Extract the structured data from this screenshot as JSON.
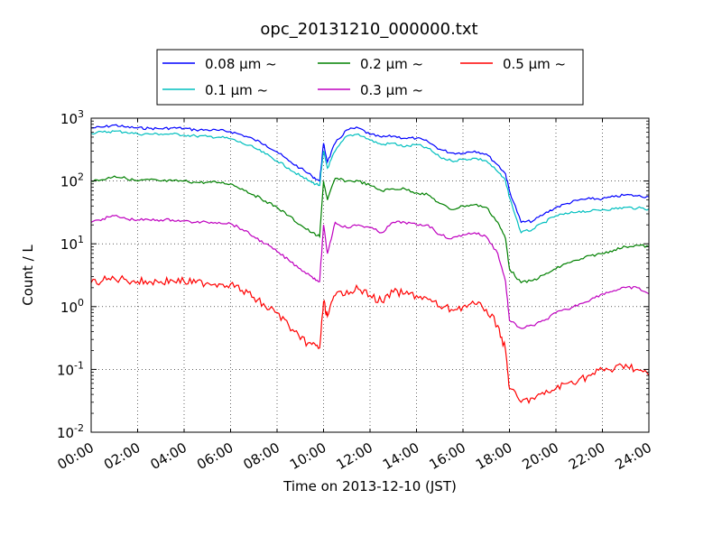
{
  "chart_data": {
    "type": "line",
    "title": "opc_20131210_000000.txt",
    "xlabel": "Time on 2013-12-10 (JST)",
    "ylabel": "Count / L",
    "y_scale": "log",
    "ylim": [
      0.01,
      1000
    ],
    "xlim": [
      "00:00",
      "24:00"
    ],
    "x_ticks": [
      "00:00",
      "02:00",
      "04:00",
      "06:00",
      "08:00",
      "10:00",
      "12:00",
      "14:00",
      "16:00",
      "18:00",
      "20:00",
      "22:00",
      "24:00"
    ],
    "y_ticks": [
      {
        "value": 0.01,
        "base": "10",
        "exp": "-2"
      },
      {
        "value": 0.1,
        "base": "10",
        "exp": "-1"
      },
      {
        "value": 1,
        "base": "10",
        "exp": "0"
      },
      {
        "value": 10,
        "base": "10",
        "exp": "1"
      },
      {
        "value": 100,
        "base": "10",
        "exp": "2"
      },
      {
        "value": 1000,
        "base": "10",
        "exp": "3"
      }
    ],
    "grid": true,
    "legend_position": "top",
    "x": [
      "00:00",
      "00:30",
      "01:00",
      "01:30",
      "02:00",
      "02:30",
      "03:00",
      "03:30",
      "04:00",
      "04:30",
      "05:00",
      "05:30",
      "06:00",
      "06:30",
      "07:00",
      "07:30",
      "08:00",
      "08:30",
      "09:00",
      "09:30",
      "09:50",
      "10:00",
      "10:10",
      "10:30",
      "11:00",
      "11:30",
      "12:00",
      "12:30",
      "13:00",
      "13:30",
      "14:00",
      "14:30",
      "15:00",
      "15:30",
      "16:00",
      "16:30",
      "17:00",
      "17:30",
      "17:50",
      "18:00",
      "18:30",
      "19:00",
      "19:30",
      "20:00",
      "20:30",
      "21:00",
      "21:30",
      "22:00",
      "22:30",
      "23:00",
      "23:30",
      "24:00"
    ],
    "series": [
      {
        "name": "0.08 μm ~",
        "color": "#0000ff",
        "values": [
          700,
          720,
          780,
          720,
          700,
          690,
          680,
          700,
          690,
          650,
          650,
          640,
          610,
          540,
          460,
          380,
          290,
          210,
          160,
          120,
          100,
          400,
          200,
          400,
          650,
          700,
          550,
          500,
          520,
          480,
          480,
          420,
          320,
          280,
          280,
          300,
          270,
          180,
          130,
          70,
          22,
          23,
          30,
          38,
          44,
          50,
          52,
          52,
          56,
          60,
          58,
          56
        ]
      },
      {
        "name": "0.1 μm ~",
        "color": "#00bfbf",
        "values": [
          580,
          600,
          620,
          600,
          560,
          560,
          560,
          560,
          540,
          520,
          510,
          500,
          470,
          400,
          340,
          270,
          210,
          160,
          120,
          95,
          85,
          300,
          160,
          300,
          520,
          560,
          450,
          380,
          400,
          350,
          380,
          330,
          240,
          210,
          220,
          230,
          210,
          140,
          100,
          55,
          15,
          17,
          22,
          28,
          30,
          33,
          33,
          35,
          36,
          38,
          37,
          36
        ]
      },
      {
        "name": "0.2 μm ~",
        "color": "#008000",
        "values": [
          100,
          105,
          120,
          110,
          100,
          105,
          100,
          100,
          100,
          95,
          95,
          95,
          90,
          75,
          60,
          48,
          38,
          28,
          20,
          15,
          13,
          100,
          50,
          110,
          100,
          100,
          85,
          70,
          75,
          75,
          65,
          60,
          44,
          35,
          40,
          42,
          38,
          22,
          12,
          4,
          2.4,
          2.6,
          3.2,
          4,
          5,
          5.5,
          6.5,
          7,
          8,
          9,
          9.5,
          9
        ]
      },
      {
        "name": "0.3 μm ~",
        "color": "#bf00bf",
        "values": [
          22,
          25,
          28,
          25,
          24,
          24,
          24,
          24,
          23,
          22,
          22,
          22,
          21,
          17,
          13,
          10,
          7.5,
          5.5,
          4,
          3,
          2.5,
          20,
          7,
          22,
          18,
          20,
          18,
          15,
          22,
          22,
          20,
          20,
          14,
          12,
          14,
          15,
          13,
          7,
          2.5,
          0.6,
          0.45,
          0.5,
          0.6,
          0.8,
          0.9,
          1.1,
          1.3,
          1.6,
          1.8,
          2,
          2,
          1.6
        ]
      },
      {
        "name": "0.5 μm ~",
        "color": "#ff0000",
        "values": [
          2.4,
          2.6,
          2.8,
          2.7,
          2.5,
          2.5,
          2.5,
          2.6,
          2.5,
          2.4,
          2.4,
          2.3,
          2.3,
          1.8,
          1.4,
          1.0,
          0.8,
          0.5,
          0.3,
          0.25,
          0.22,
          1.2,
          0.7,
          1.5,
          1.8,
          1.9,
          1.5,
          1.2,
          1.7,
          1.6,
          1.5,
          1.3,
          1.0,
          0.9,
          1.0,
          1.1,
          0.9,
          0.5,
          0.2,
          0.05,
          0.03,
          0.035,
          0.04,
          0.05,
          0.06,
          0.07,
          0.08,
          0.1,
          0.1,
          0.12,
          0.1,
          0.08
        ]
      }
    ]
  }
}
